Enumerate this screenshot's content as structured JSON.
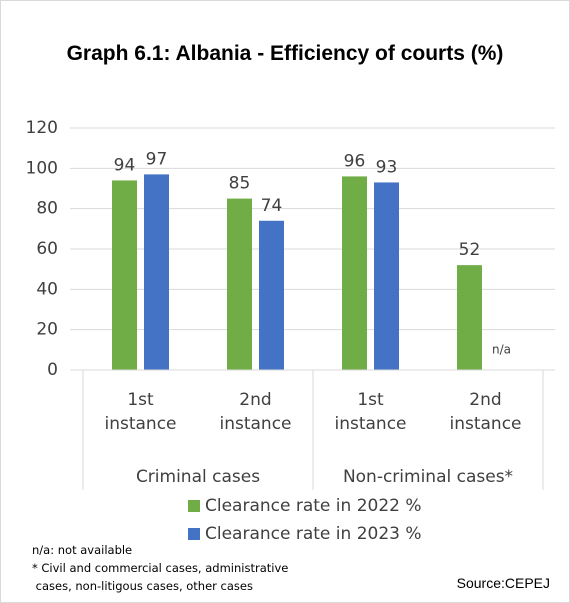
{
  "chart_data": {
    "type": "bar",
    "title": "Graph 6.1: Albania - Efficiency of courts (%)",
    "categories": [
      "1st instance",
      "2nd instance",
      "1st instance",
      "2nd instance"
    ],
    "groups": [
      "Criminal cases",
      "Non-criminal cases*"
    ],
    "series": [
      {
        "name": "Clearance rate in 2022 %",
        "color": "#70ad47",
        "values": [
          94,
          85,
          96,
          52
        ]
      },
      {
        "name": "Clearance rate in 2023 %",
        "color": "#4472c4",
        "values": [
          97,
          74,
          93,
          null
        ],
        "value_labels": [
          "97",
          "74",
          "93",
          "n/a"
        ]
      }
    ],
    "ylim": [
      0,
      120
    ],
    "yticks": [
      0,
      20,
      40,
      60,
      80,
      100,
      120
    ],
    "grid": true,
    "notes": [
      "n/a: not available",
      "* Civil and commercial cases, administrative",
      " cases, non-litigous cases, other cases"
    ],
    "source": "Source:CEPEJ"
  }
}
